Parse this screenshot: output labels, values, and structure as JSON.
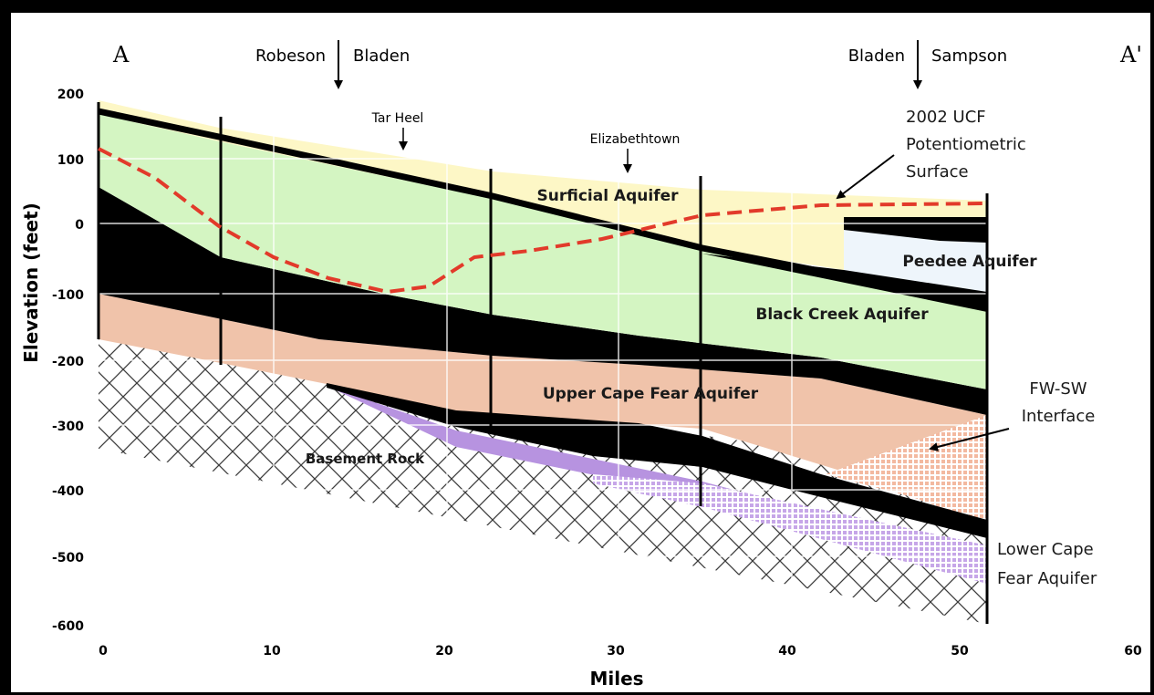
{
  "section": {
    "start_label": "A",
    "end_label": "A'"
  },
  "county_lines": {
    "left": {
      "west": "Robeson",
      "east": "Bladen"
    },
    "right": {
      "west": "Bladen",
      "east": "Sampson"
    }
  },
  "towns": {
    "tar_heel": "Tar Heel",
    "elizabethtown": "Elizabethtown"
  },
  "axes": {
    "ylabel": "Elevation (feet)",
    "xlabel": "Miles",
    "yticks": [
      "200",
      "100",
      "0",
      "-100",
      "-200",
      "-300",
      "-400",
      "-500",
      "-600"
    ],
    "xticks": [
      "0",
      "10",
      "20",
      "30",
      "40",
      "50",
      "60"
    ]
  },
  "units": {
    "surficial": "Surficial Aquifer",
    "peedee": "Peedee Aquifer",
    "black_creek": "Black Creek Aquifer",
    "upper_cape_fear": "Upper Cape Fear Aquifer",
    "basement": "Basement Rock"
  },
  "callouts": {
    "potentiometric": [
      "2002 UCF",
      "Potentiometric",
      "Surface"
    ],
    "interface": [
      "FW-SW",
      "Interface"
    ],
    "lower_cape_fear": [
      "Lower Cape",
      "Fear Aquifer"
    ]
  },
  "colors": {
    "surficial": "#fdf7c6",
    "black_creek": "#d4f5c2",
    "upper_cape_fear": "#f0c3aa",
    "lower_cape_fear": "#b793e0",
    "peedee": "#eef5fb",
    "confining": "#000000",
    "potentiometric": "#e23a2a"
  }
}
